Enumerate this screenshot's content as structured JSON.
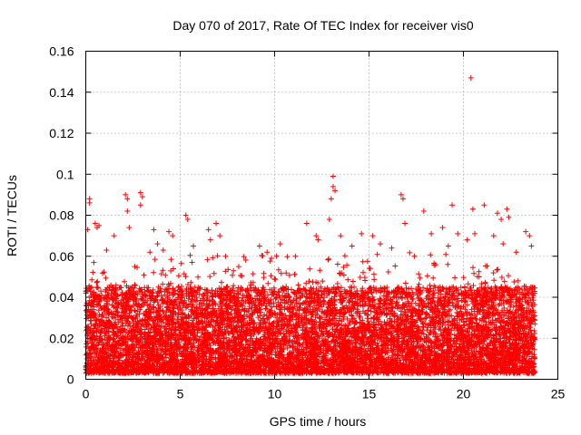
{
  "chart_data": {
    "type": "scatter",
    "title": "Day 070 of 2017, Rate Of TEC Index for receiver vis0",
    "xlabel": "GPS time / hours",
    "ylabel": "ROTI / TECUs",
    "xlim": [
      0,
      25
    ],
    "ylim": [
      0,
      0.16
    ],
    "xticks": [
      0,
      5,
      10,
      15,
      20,
      25
    ],
    "yticks": [
      0,
      0.02,
      0.04,
      0.06,
      0.08,
      0.1,
      0.12,
      0.14,
      0.16
    ],
    "ytick_labels": [
      "0",
      "0.02",
      "0.04",
      "0.06",
      "0.08",
      "0.1",
      "0.12",
      "0.14",
      "0.16"
    ],
    "grid": true,
    "marker": "+",
    "color": "#ff0000",
    "x_data_range": [
      0,
      23.8
    ],
    "bulk_value_range": [
      0.003,
      0.045
    ],
    "outliers": [
      {
        "x": 0.2,
        "y": 0.088
      },
      {
        "x": 0.2,
        "y": 0.086
      },
      {
        "x": 0.1,
        "y": 0.073
      },
      {
        "x": 0.5,
        "y": 0.076
      },
      {
        "x": 0.6,
        "y": 0.074
      },
      {
        "x": 0.7,
        "y": 0.075
      },
      {
        "x": 1.1,
        "y": 0.063
      },
      {
        "x": 1.5,
        "y": 0.07
      },
      {
        "x": 2.1,
        "y": 0.09
      },
      {
        "x": 2.2,
        "y": 0.088
      },
      {
        "x": 2.2,
        "y": 0.082
      },
      {
        "x": 2.3,
        "y": 0.074
      },
      {
        "x": 2.9,
        "y": 0.091
      },
      {
        "x": 3.0,
        "y": 0.089
      },
      {
        "x": 2.9,
        "y": 0.085
      },
      {
        "x": 2.6,
        "y": 0.055
      },
      {
        "x": 3.4,
        "y": 0.062
      },
      {
        "x": 3.6,
        "y": 0.073
      },
      {
        "x": 3.8,
        "y": 0.066
      },
      {
        "x": 4.1,
        "y": 0.063
      },
      {
        "x": 4.4,
        "y": 0.072
      },
      {
        "x": 4.6,
        "y": 0.07
      },
      {
        "x": 5.3,
        "y": 0.08
      },
      {
        "x": 5.4,
        "y": 0.078
      },
      {
        "x": 5.7,
        "y": 0.065
      },
      {
        "x": 6.5,
        "y": 0.073
      },
      {
        "x": 6.6,
        "y": 0.068
      },
      {
        "x": 6.9,
        "y": 0.076
      },
      {
        "x": 7.1,
        "y": 0.07
      },
      {
        "x": 7.4,
        "y": 0.06
      },
      {
        "x": 8.1,
        "y": 0.055
      },
      {
        "x": 9.2,
        "y": 0.065
      },
      {
        "x": 9.6,
        "y": 0.062
      },
      {
        "x": 10.3,
        "y": 0.066
      },
      {
        "x": 11.1,
        "y": 0.06
      },
      {
        "x": 11.7,
        "y": 0.076
      },
      {
        "x": 12.2,
        "y": 0.07
      },
      {
        "x": 12.3,
        "y": 0.068
      },
      {
        "x": 12.9,
        "y": 0.078
      },
      {
        "x": 13.1,
        "y": 0.099
      },
      {
        "x": 13.1,
        "y": 0.094
      },
      {
        "x": 13.2,
        "y": 0.092
      },
      {
        "x": 13.0,
        "y": 0.088
      },
      {
        "x": 13.5,
        "y": 0.07
      },
      {
        "x": 14.1,
        "y": 0.065
      },
      {
        "x": 14.6,
        "y": 0.071
      },
      {
        "x": 15.2,
        "y": 0.07
      },
      {
        "x": 15.6,
        "y": 0.066
      },
      {
        "x": 16.2,
        "y": 0.064
      },
      {
        "x": 16.7,
        "y": 0.09
      },
      {
        "x": 16.8,
        "y": 0.088
      },
      {
        "x": 16.9,
        "y": 0.076
      },
      {
        "x": 17.4,
        "y": 0.06
      },
      {
        "x": 17.9,
        "y": 0.082
      },
      {
        "x": 18.3,
        "y": 0.071
      },
      {
        "x": 18.9,
        "y": 0.074
      },
      {
        "x": 19.2,
        "y": 0.065
      },
      {
        "x": 19.4,
        "y": 0.085
      },
      {
        "x": 19.7,
        "y": 0.071
      },
      {
        "x": 20.2,
        "y": 0.068
      },
      {
        "x": 20.4,
        "y": 0.147
      },
      {
        "x": 20.5,
        "y": 0.083
      },
      {
        "x": 20.6,
        "y": 0.071
      },
      {
        "x": 21.1,
        "y": 0.085
      },
      {
        "x": 21.6,
        "y": 0.07
      },
      {
        "x": 21.8,
        "y": 0.081
      },
      {
        "x": 22.0,
        "y": 0.078
      },
      {
        "x": 22.3,
        "y": 0.083
      },
      {
        "x": 22.4,
        "y": 0.079
      },
      {
        "x": 22.1,
        "y": 0.066
      },
      {
        "x": 22.8,
        "y": 0.062
      },
      {
        "x": 23.3,
        "y": 0.072
      },
      {
        "x": 23.5,
        "y": 0.07
      },
      {
        "x": 23.6,
        "y": 0.065
      }
    ]
  }
}
